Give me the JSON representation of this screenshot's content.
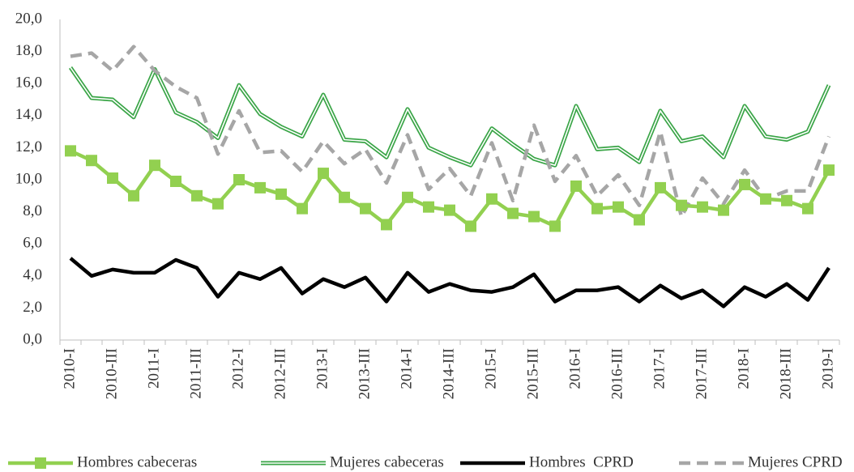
{
  "chart_data": {
    "type": "line",
    "categories": [
      "2010-I",
      null,
      "2010-III",
      null,
      "2011-I",
      null,
      "2011-III",
      null,
      "2012-I",
      null,
      "2012-III",
      null,
      "2013-I",
      null,
      "2013-III",
      null,
      "2014-I",
      null,
      "2014-III",
      null,
      "2015-I",
      null,
      "2015-III",
      null,
      "2016-I",
      null,
      "2016-III",
      null,
      "2017-I",
      null,
      "2017-III",
      null,
      "2018-I",
      null,
      "2018-III",
      null,
      "2019-I"
    ],
    "series": [
      {
        "name": "Hombres cabeceras",
        "color": "#92d050",
        "style": "solid",
        "marker": "square",
        "values": [
          11.8,
          11.2,
          10.1,
          9.0,
          10.9,
          9.9,
          9.0,
          8.5,
          10.0,
          9.5,
          9.1,
          8.2,
          10.4,
          8.9,
          8.2,
          7.2,
          8.9,
          8.3,
          8.1,
          7.1,
          8.8,
          7.9,
          7.7,
          7.1,
          9.6,
          8.2,
          8.3,
          7.5,
          9.5,
          8.4,
          8.3,
          8.1,
          9.7,
          8.8,
          8.7,
          8.2,
          10.6
        ]
      },
      {
        "name": "Mujeres cabeceras",
        "color": "#3aa547",
        "style": "double",
        "values": [
          17.0,
          15.1,
          15.0,
          13.9,
          16.9,
          14.2,
          13.6,
          12.6,
          15.9,
          14.1,
          13.3,
          12.7,
          15.3,
          12.5,
          12.4,
          11.4,
          14.4,
          12.0,
          11.4,
          10.9,
          13.2,
          12.2,
          11.3,
          10.9,
          14.6,
          11.9,
          12.0,
          11.1,
          14.3,
          12.4,
          12.7,
          11.4,
          14.6,
          12.7,
          12.5,
          13.0,
          15.9
        ]
      },
      {
        "name": "Hombres  CPRD",
        "color": "#000000",
        "style": "solid",
        "values": [
          5.1,
          4.0,
          4.4,
          4.2,
          4.2,
          5.0,
          4.5,
          2.7,
          4.2,
          3.8,
          4.5,
          2.9,
          3.8,
          3.3,
          3.9,
          2.4,
          4.2,
          3.0,
          3.5,
          3.1,
          3.0,
          3.3,
          4.1,
          2.4,
          3.1,
          3.1,
          3.3,
          2.4,
          3.4,
          2.6,
          3.1,
          2.1,
          3.3,
          2.7,
          3.5,
          2.5,
          4.5
        ]
      },
      {
        "name": "Mujeres CPRD",
        "color": "#a6a6a6",
        "style": "dashed",
        "values": [
          17.7,
          17.9,
          16.8,
          18.3,
          16.8,
          15.8,
          15.1,
          11.6,
          14.3,
          11.7,
          11.8,
          10.5,
          12.4,
          11.0,
          11.9,
          9.8,
          12.8,
          9.4,
          10.7,
          9.0,
          12.3,
          8.7,
          13.4,
          9.9,
          11.5,
          9.0,
          10.3,
          8.4,
          13.0,
          7.7,
          10.1,
          8.5,
          10.6,
          8.8,
          9.3,
          9.3,
          12.7
        ]
      }
    ],
    "ylim": [
      0,
      20
    ],
    "yticks": [
      {
        "value": 0,
        "label": "0,0"
      },
      {
        "value": 2,
        "label": "2,0"
      },
      {
        "value": 4,
        "label": "4,0"
      },
      {
        "value": 6,
        "label": "6,0"
      },
      {
        "value": 8,
        "label": "8,0"
      },
      {
        "value": 10,
        "label": "10,0"
      },
      {
        "value": 12,
        "label": "12,0"
      },
      {
        "value": 14,
        "label": "14,0"
      },
      {
        "value": 16,
        "label": "16,0"
      },
      {
        "value": 18,
        "label": "18,0"
      },
      {
        "value": 20,
        "label": "20,0"
      }
    ],
    "legend": "bottom"
  }
}
